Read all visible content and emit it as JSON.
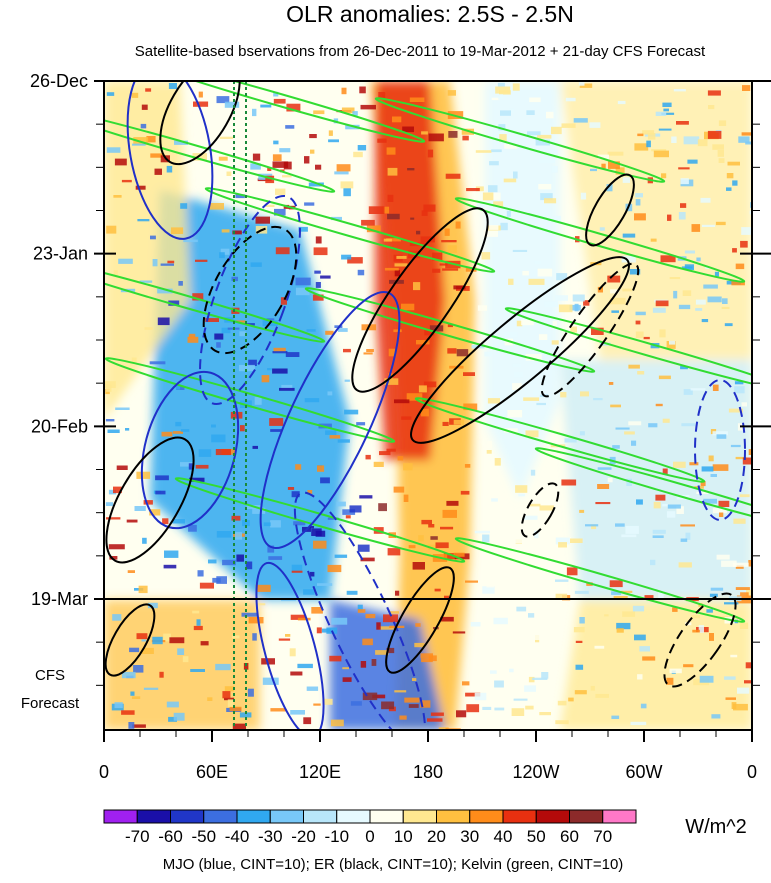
{
  "chart_data": {
    "type": "heatmap",
    "title": "OLR anomalies: 2.5S - 2.5N",
    "subtitle": "Satellite-based bservations from 26-Dec-2011 to 19-Mar-2012 + 21-day CFS Forecast",
    "x_ticks": [
      "0",
      "60E",
      "120E",
      "180",
      "120W",
      "60W",
      "0"
    ],
    "y_ticks": [
      "26-Dec",
      "23-Jan",
      "20-Feb",
      "19-Mar"
    ],
    "forecast_label": [
      "CFS",
      "Forecast"
    ],
    "colorbar": {
      "labels": [
        "-70",
        "-60",
        "-50",
        "-40",
        "-30",
        "-20",
        "-10",
        "0",
        "10",
        "20",
        "30",
        "40",
        "50",
        "60",
        "70"
      ],
      "colors": [
        "#a020f0",
        "#1a0fa8",
        "#2036c8",
        "#3c6ee0",
        "#30a8f0",
        "#78c8f8",
        "#b8e6fa",
        "#e6faff",
        "#fffff0",
        "#ffe890",
        "#ffc040",
        "#ff8c1a",
        "#e83010",
        "#b40a0a",
        "#8c2a2a",
        "#ff78c8"
      ],
      "units": "W/m^2"
    },
    "footnote": "MJO (blue, CINT=10); ER (black, CINT=10); Kelvin (green, CINT=10)",
    "overlays": [
      {
        "name": "MJO",
        "color": "#2030c8",
        "contour_interval": 10
      },
      {
        "name": "ER",
        "color": "#000000",
        "contour_interval": 10
      },
      {
        "name": "Kelvin",
        "color": "#32dc32",
        "contour_interval": 10
      }
    ],
    "grid": false
  }
}
